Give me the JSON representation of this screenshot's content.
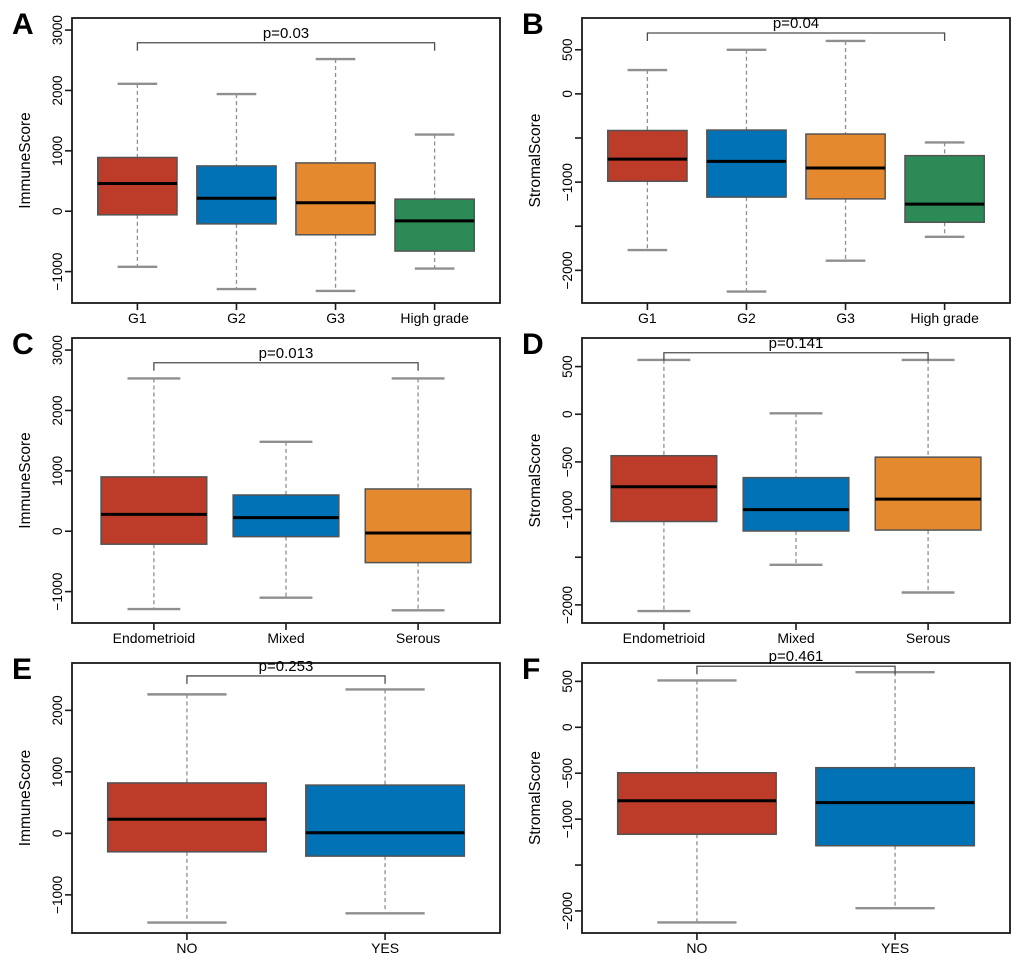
{
  "figure_title": "",
  "styles": {
    "background": "#ffffff",
    "axis_color": "#1a1a1a",
    "box_border_color": "#545454",
    "median_color": "#000000",
    "whisker_color": "#8f8f8f",
    "bracket_color": "#4d4d4d",
    "text_color": "#000000",
    "palette": {
      "red": "#bc3c29",
      "blue": "#0072b5",
      "orange": "#e5892e",
      "green": "#2b8a55"
    }
  },
  "chart_data": [
    {
      "panel": "A",
      "type": "box",
      "ylabel": "ImmuneScore",
      "p_text": "p=0.03",
      "ylim": [
        -1520,
        3200
      ],
      "yticks": [
        {
          "value": -1000,
          "label": "−1000"
        },
        {
          "value": 0,
          "label": "0"
        },
        {
          "value": 1000,
          "label": "1000"
        },
        {
          "value": 2000,
          "label": "2000"
        },
        {
          "value": 3000,
          "label": "3000"
        }
      ],
      "bracket": {
        "y": 2790,
        "from": 0,
        "to": 3
      },
      "categories": [
        "G1",
        "G2",
        "G3",
        "High grade"
      ],
      "series": [
        {
          "name": "G1",
          "color": "#bc3c29",
          "min": -920,
          "q1": -60,
          "median": 460,
          "q3": 890,
          "max": 2110
        },
        {
          "name": "G2",
          "color": "#0072b5",
          "min": -1290,
          "q1": -210,
          "median": 215,
          "q3": 750,
          "max": 1940
        },
        {
          "name": "G3",
          "color": "#e5892e",
          "min": -1320,
          "q1": -390,
          "median": 140,
          "q3": 800,
          "max": 2520
        },
        {
          "name": "High grade",
          "color": "#2b8a55",
          "min": -950,
          "q1": -660,
          "median": -160,
          "q3": 200,
          "max": 1270
        }
      ]
    },
    {
      "panel": "B",
      "type": "box",
      "ylabel": "StromalScore",
      "p_text": "p=0.04",
      "ylim": [
        -2370,
        860
      ],
      "yticks": [
        {
          "value": -2000,
          "label": "−2000"
        },
        {
          "value": -1500,
          "label": ""
        },
        {
          "value": -1000,
          "label": "−1000"
        },
        {
          "value": -500,
          "label": ""
        },
        {
          "value": 0,
          "label": "0"
        },
        {
          "value": 500,
          "label": "500"
        }
      ],
      "bracket": {
        "y": 690,
        "from": 0,
        "to": 3
      },
      "categories": [
        "G1",
        "G2",
        "G3",
        "High grade"
      ],
      "series": [
        {
          "name": "G1",
          "color": "#bc3c29",
          "min": -1770,
          "q1": -990,
          "median": -740,
          "q3": -415,
          "max": 270
        },
        {
          "name": "G2",
          "color": "#0072b5",
          "min": -2240,
          "q1": -1170,
          "median": -765,
          "q3": -410,
          "max": 500
        },
        {
          "name": "G3",
          "color": "#e5892e",
          "min": -1890,
          "q1": -1190,
          "median": -840,
          "q3": -455,
          "max": 600
        },
        {
          "name": "High grade",
          "color": "#2b8a55",
          "min": -1620,
          "q1": -1455,
          "median": -1250,
          "q3": -700,
          "max": -550
        }
      ]
    },
    {
      "panel": "C",
      "type": "box",
      "ylabel": "ImmuneScore",
      "p_text": "p=0.013",
      "ylim": [
        -1520,
        3200
      ],
      "yticks": [
        {
          "value": -1000,
          "label": "−1000"
        },
        {
          "value": 0,
          "label": "0"
        },
        {
          "value": 1000,
          "label": "1000"
        },
        {
          "value": 2000,
          "label": "2000"
        },
        {
          "value": 3000,
          "label": "3000"
        }
      ],
      "bracket": {
        "y": 2790,
        "from": 0,
        "to": 2
      },
      "categories": [
        "Endometrioid",
        "Mixed",
        "Serous"
      ],
      "series": [
        {
          "name": "Endometrioid",
          "color": "#bc3c29",
          "min": -1290,
          "q1": -215,
          "median": 280,
          "q3": 900,
          "max": 2530
        },
        {
          "name": "Mixed",
          "color": "#0072b5",
          "min": -1100,
          "q1": -90,
          "median": 225,
          "q3": 600,
          "max": 1480
        },
        {
          "name": "Serous",
          "color": "#e5892e",
          "min": -1310,
          "q1": -520,
          "median": -30,
          "q3": 700,
          "max": 2530
        }
      ]
    },
    {
      "panel": "D",
      "type": "box",
      "ylabel": "StromalScore",
      "p_text": "p=0.141",
      "ylim": [
        -2190,
        800
      ],
      "yticks": [
        {
          "value": -2000,
          "label": "−2000"
        },
        {
          "value": -1500,
          "label": ""
        },
        {
          "value": -1000,
          "label": "−1000"
        },
        {
          "value": -500,
          "label": "−500"
        },
        {
          "value": 0,
          "label": "0"
        },
        {
          "value": 500,
          "label": "500"
        }
      ],
      "bracket": {
        "y": 645,
        "from": 0,
        "to": 2
      },
      "categories": [
        "Endometrioid",
        "Mixed",
        "Serous"
      ],
      "series": [
        {
          "name": "Endometrioid",
          "color": "#bc3c29",
          "min": -2065,
          "q1": -1125,
          "median": -760,
          "q3": -435,
          "max": 570
        },
        {
          "name": "Mixed",
          "color": "#0072b5",
          "min": -1580,
          "q1": -1225,
          "median": -1000,
          "q3": -665,
          "max": 10
        },
        {
          "name": "Serous",
          "color": "#e5892e",
          "min": -1870,
          "q1": -1215,
          "median": -890,
          "q3": -450,
          "max": 570
        }
      ]
    },
    {
      "panel": "E",
      "type": "box",
      "ylabel": "ImmuneScore",
      "p_text": "p=0.253",
      "ylim": [
        -1620,
        2770
      ],
      "yticks": [
        {
          "value": -1000,
          "label": "−1000"
        },
        {
          "value": 0,
          "label": "0"
        },
        {
          "value": 1000,
          "label": "1000"
        },
        {
          "value": 2000,
          "label": "2000"
        }
      ],
      "bracket": {
        "y": 2560,
        "from": 0,
        "to": 1
      },
      "categories": [
        "NO",
        "YES"
      ],
      "series": [
        {
          "name": "NO",
          "color": "#bc3c29",
          "min": -1450,
          "q1": -300,
          "median": 230,
          "q3": 820,
          "max": 2260
        },
        {
          "name": "YES",
          "color": "#0072b5",
          "min": -1300,
          "q1": -370,
          "median": 10,
          "q3": 785,
          "max": 2340
        }
      ]
    },
    {
      "panel": "F",
      "type": "box",
      "ylabel": "StromalScore",
      "p_text": "p=0.461",
      "ylim": [
        -2240,
        700
      ],
      "yticks": [
        {
          "value": -2000,
          "label": "−2000"
        },
        {
          "value": -1500,
          "label": ""
        },
        {
          "value": -1000,
          "label": "−1000"
        },
        {
          "value": -500,
          "label": "−500"
        },
        {
          "value": 0,
          "label": "0"
        },
        {
          "value": 500,
          "label": "500"
        }
      ],
      "bracket": {
        "y": 665,
        "from": 0,
        "to": 1
      },
      "categories": [
        "NO",
        "YES"
      ],
      "series": [
        {
          "name": "NO",
          "color": "#bc3c29",
          "min": -2125,
          "q1": -1165,
          "median": -800,
          "q3": -495,
          "max": 510
        },
        {
          "name": "YES",
          "color": "#0072b5",
          "min": -1970,
          "q1": -1290,
          "median": -820,
          "q3": -440,
          "max": 600
        }
      ]
    }
  ]
}
